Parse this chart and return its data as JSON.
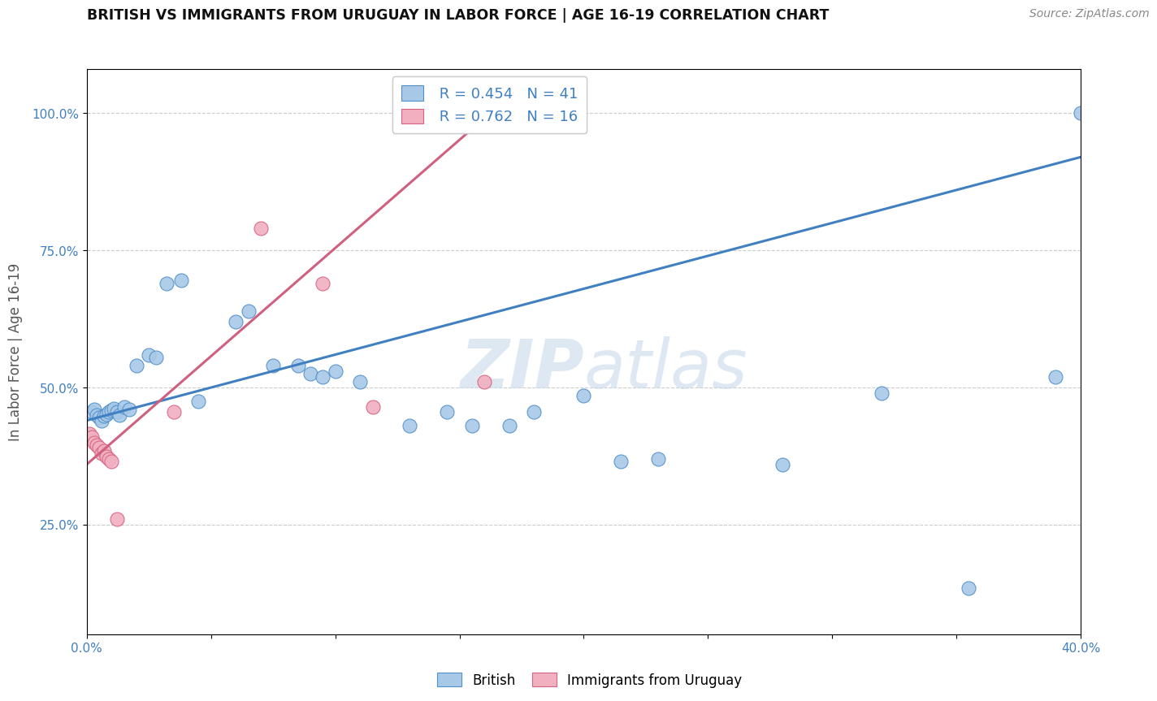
{
  "title": "BRITISH VS IMMIGRANTS FROM URUGUAY IN LABOR FORCE | AGE 16-19 CORRELATION CHART",
  "source": "Source: ZipAtlas.com",
  "ylabel": "In Labor Force | Age 16-19",
  "legend_british_R": "0.454",
  "legend_british_N": "41",
  "legend_uruguay_R": "0.762",
  "legend_uruguay_N": "16",
  "xmin": 0.0,
  "xmax": 0.4,
  "ymin": 0.05,
  "ymax": 1.08,
  "yticks": [
    0.25,
    0.5,
    0.75,
    1.0
  ],
  "ytick_labels": [
    "25.0%",
    "50.0%",
    "75.0%",
    "100.0%"
  ],
  "xticks": [
    0.0,
    0.05,
    0.1,
    0.15,
    0.2,
    0.25,
    0.3,
    0.35,
    0.4
  ],
  "xtick_labels": [
    "0.0%",
    "",
    "",
    "",
    "",
    "",
    "",
    "",
    "40.0%"
  ],
  "watermark": "ZIPatlas",
  "british_color": "#a8c8e8",
  "british_edge_color": "#5090c8",
  "british_line_color": "#4080c0",
  "uruguay_color": "#f0b0c0",
  "uruguay_edge_color": "#d86080",
  "uruguay_line_color": "#d06080",
  "british_x": [
    0.002,
    0.003,
    0.004,
    0.005,
    0.006,
    0.007,
    0.008,
    0.009,
    0.01,
    0.011,
    0.012,
    0.013,
    0.015,
    0.017,
    0.02,
    0.025,
    0.028,
    0.032,
    0.038,
    0.045,
    0.06,
    0.065,
    0.075,
    0.085,
    0.09,
    0.095,
    0.1,
    0.11,
    0.13,
    0.145,
    0.155,
    0.17,
    0.18,
    0.2,
    0.215,
    0.23,
    0.28,
    0.32,
    0.355,
    0.39,
    0.4
  ],
  "british_y": [
    0.455,
    0.46,
    0.45,
    0.445,
    0.44,
    0.448,
    0.452,
    0.455,
    0.458,
    0.462,
    0.455,
    0.45,
    0.465,
    0.46,
    0.54,
    0.56,
    0.555,
    0.69,
    0.695,
    0.475,
    0.62,
    0.64,
    0.54,
    0.54,
    0.525,
    0.52,
    0.53,
    0.51,
    0.43,
    0.455,
    0.43,
    0.43,
    0.455,
    0.485,
    0.365,
    0.37,
    0.36,
    0.49,
    0.135,
    0.52,
    1.0
  ],
  "uruguay_x": [
    0.001,
    0.002,
    0.003,
    0.004,
    0.005,
    0.006,
    0.007,
    0.008,
    0.009,
    0.01,
    0.012,
    0.035,
    0.07,
    0.095,
    0.115,
    0.16
  ],
  "uruguay_y": [
    0.415,
    0.41,
    0.4,
    0.395,
    0.39,
    0.38,
    0.385,
    0.375,
    0.37,
    0.365,
    0.26,
    0.455,
    0.79,
    0.69,
    0.465,
    0.51
  ],
  "blue_line_x0": 0.0,
  "blue_line_y0": 0.44,
  "blue_line_x1": 0.4,
  "blue_line_y1": 0.92,
  "pink_line_x0": 0.0,
  "pink_line_y0": 0.36,
  "pink_line_x1": 0.175,
  "pink_line_y1": 1.05
}
